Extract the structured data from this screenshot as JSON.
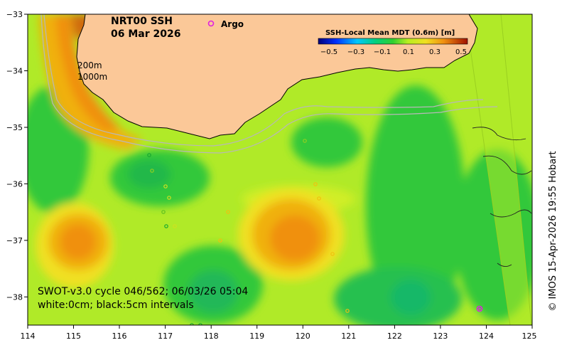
{
  "map": {
    "title": "NRT00 SSH",
    "date": "06 Mar 2026",
    "legend_argo": "Argo",
    "contour_labels": [
      "200m",
      "1000m"
    ],
    "colorbar": {
      "title": "SSH-Local Mean MDT (0.6m) [m]",
      "ticks": [
        "−0.5",
        "−0.3",
        "−0.1",
        "0.1",
        "0.3",
        "0.5"
      ]
    },
    "x_ticks": [
      "114",
      "115",
      "116",
      "117",
      "118",
      "119",
      "120",
      "121",
      "122",
      "123",
      "124",
      "125"
    ],
    "y_ticks": [
      "−33",
      "−34",
      "−35",
      "−36",
      "−37",
      "−38"
    ],
    "swot_line": "SWOT-v3.0 cycle 046/562; 06/03/26 05:04",
    "contour_note": "white:0cm; black:5cm intervals",
    "copyright": "© IMOS 15-Apr-2026 19:55 Hobart"
  },
  "colors": {
    "land": "#fbc898",
    "argo": "#e020e0",
    "green": "#1fbf32",
    "yellow_green": "#b0ea28",
    "orange": "#f08a10"
  }
}
